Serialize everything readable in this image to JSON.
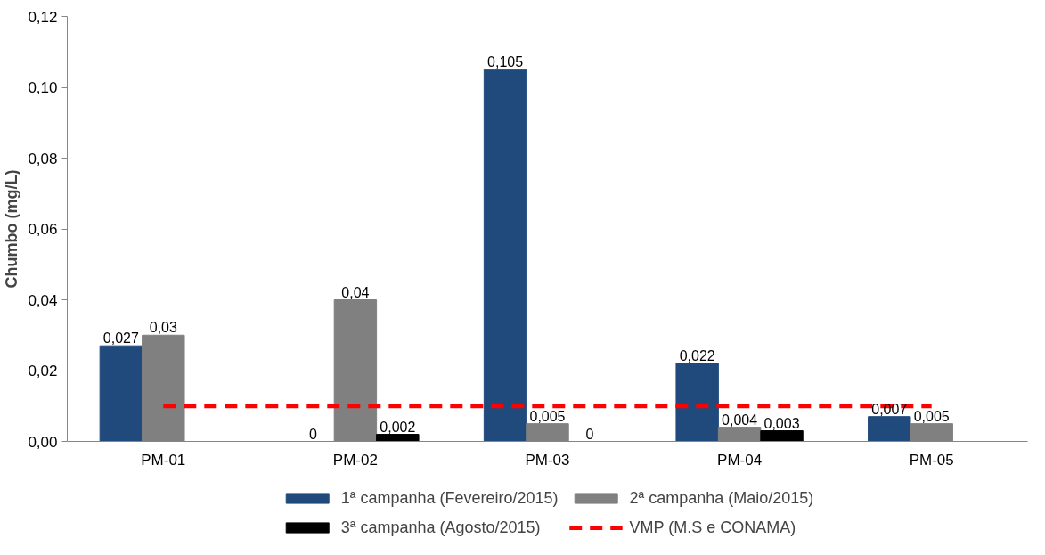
{
  "chart_data": {
    "type": "bar",
    "ylabel": "Chumbo (mg/L)",
    "categories": [
      "PM-01",
      "PM-02",
      "PM-03",
      "PM-04",
      "PM-05"
    ],
    "series": [
      {
        "name": "1ª campanha (Fevereiro/2015)",
        "color": "#214a7c",
        "values": [
          0.027,
          0,
          0.105,
          0.022,
          0.007
        ],
        "value_labels": [
          "0,027",
          "0",
          "0,105",
          "0,022",
          "0,007"
        ]
      },
      {
        "name": "2ª campanha (Maio/2015)",
        "color": "#808080",
        "values": [
          0.03,
          0.04,
          0.005,
          0.004,
          0.005
        ],
        "value_labels": [
          "0,03",
          "0,04",
          "0,005",
          "0,004",
          "0,005"
        ]
      },
      {
        "name": "3ª campanha (Agosto/2015)",
        "color": "#000000",
        "values": [
          null,
          0.002,
          0,
          0.003,
          null
        ],
        "value_labels": [
          null,
          "0,002",
          "0",
          "0,003",
          null
        ]
      },
      {
        "name": "VMP (M.S e CONAMA)",
        "type": "line",
        "color": "#ff0000",
        "line_style": "dashed",
        "marker": "none",
        "values": [
          0.01,
          0.01,
          0.01,
          0.01,
          0.01
        ]
      }
    ],
    "ylim": [
      0,
      0.12
    ],
    "yticks": [
      {
        "value": 0,
        "label": "0,00"
      },
      {
        "value": 0.02,
        "label": "0,02"
      },
      {
        "value": 0.04,
        "label": "0,04"
      },
      {
        "value": 0.06,
        "label": "0,06"
      },
      {
        "value": 0.08,
        "label": "0,08"
      },
      {
        "value": 0.1,
        "label": "0,10"
      },
      {
        "value": 0.12,
        "label": "0,12"
      }
    ],
    "grid": false,
    "legend": "bottom"
  }
}
